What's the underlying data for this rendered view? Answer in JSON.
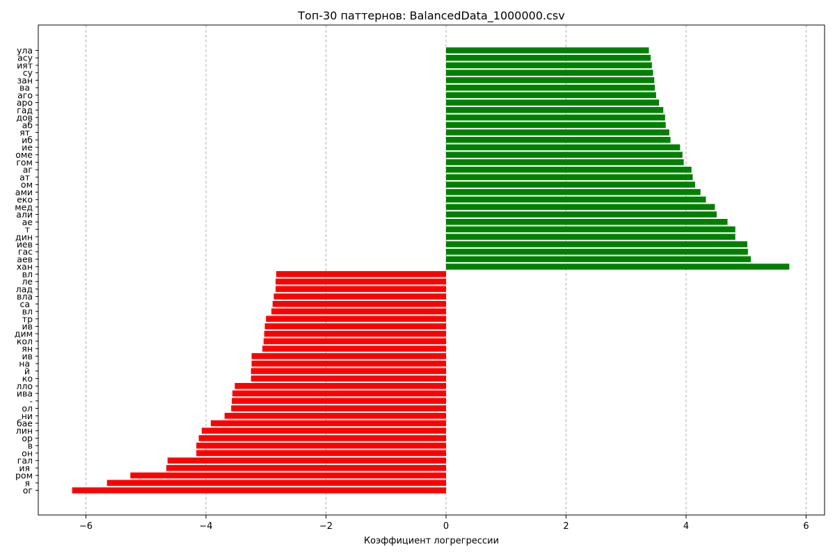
{
  "chart_data": {
    "type": "bar",
    "orientation": "horizontal",
    "title": "Топ-30 паттернов: BalancedData_1000000.csv",
    "xlabel": "Коэффициент логрегрессии",
    "ylabel": "",
    "xlim": [
      -6.8,
      6.3
    ],
    "xticks": [
      -6,
      -4,
      -2,
      0,
      2,
      4,
      6
    ],
    "xtick_labels": [
      "−6",
      "−4",
      "−2",
      "0",
      "2",
      "4",
      "6"
    ],
    "grid": {
      "x": true,
      "y": false,
      "style": "dashed"
    },
    "colors": {
      "positive": "#008000",
      "negative": "#ff0000"
    },
    "categories": [
      "ула",
      "асу",
      "ият",
      "су",
      "зан",
      "ва ",
      "аго",
      "аро",
      "гад",
      "дов",
      "аб",
      "ят ",
      "иб",
      "ие",
      "оме",
      "гом",
      "аг",
      "ат ",
      "ом",
      "ами",
      "еко",
      "мед",
      "али",
      "ае",
      "т ",
      "дин",
      "иев",
      "гас",
      "аев",
      "хан",
      "вл",
      "ле",
      "лад",
      "вла",
      "са ",
      "вл",
      "тр",
      "ив",
      "дим",
      "кол",
      "ян",
      "ив",
      "на ",
      "й ",
      "ко",
      "лло",
      "ива",
      "-",
      "ол",
      "ни",
      "бае",
      "лин",
      "ор",
      "в",
      "он",
      "гал",
      "ия ",
      "ром",
      "я ",
      "ог"
    ],
    "values": [
      3.38,
      3.41,
      3.43,
      3.45,
      3.47,
      3.48,
      3.5,
      3.55,
      3.62,
      3.65,
      3.66,
      3.72,
      3.74,
      3.9,
      3.94,
      3.96,
      4.09,
      4.11,
      4.15,
      4.24,
      4.33,
      4.48,
      4.51,
      4.69,
      4.82,
      4.82,
      5.02,
      5.03,
      5.08,
      5.72,
      -2.83,
      -2.84,
      -2.84,
      -2.87,
      -2.89,
      -2.91,
      -3.0,
      -3.02,
      -3.03,
      -3.04,
      -3.06,
      -3.24,
      -3.24,
      -3.25,
      -3.25,
      -3.52,
      -3.56,
      -3.57,
      -3.58,
      -3.69,
      -3.92,
      -4.07,
      -4.12,
      -4.16,
      -4.16,
      -4.64,
      -4.66,
      -5.26,
      -5.65,
      -6.23
    ]
  }
}
